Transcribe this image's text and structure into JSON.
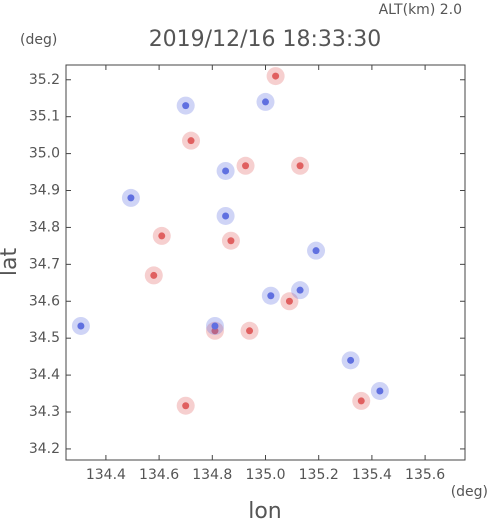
{
  "chart_data": {
    "type": "scatter",
    "title": "2019/12/16 18:33:30",
    "annotation": "ALT(km) 2.0",
    "y_unit": "(deg)",
    "x_unit": "(deg)",
    "x_label": "lon",
    "y_label": "lat",
    "xlim": [
      134.25,
      135.75
    ],
    "ylim": [
      34.17,
      35.24
    ],
    "xticks": [
      134.4,
      134.6,
      134.8,
      {
        "value": 135.0,
        "label": "135.0"
      },
      135.2,
      135.4,
      135.6
    ],
    "yticks": [
      34.2,
      34.3,
      34.4,
      34.5,
      34.6,
      34.7,
      34.8,
      34.9,
      {
        "value": 35.0,
        "label": "35.0"
      },
      35.1,
      35.2
    ],
    "series": [
      {
        "color": "#e06060",
        "x": [
          135.038,
          134.925,
          135.13,
          134.87,
          134.61,
          134.58,
          134.94,
          135.09,
          134.7,
          135.36,
          134.72,
          134.81
        ],
        "y": [
          35.21,
          34.967,
          34.967,
          34.764,
          34.777,
          34.67,
          34.52,
          34.6,
          34.317,
          34.33,
          35.035,
          34.52
        ]
      },
      {
        "color": "#6070e0",
        "x": [
          135.0,
          134.494,
          134.306,
          134.85,
          135.19,
          134.81,
          135.43,
          135.32,
          134.7,
          135.13,
          134.85,
          135.02
        ],
        "y": [
          35.14,
          34.88,
          34.533,
          34.831,
          34.737,
          34.533,
          34.357,
          34.44,
          35.13,
          34.63,
          34.953,
          34.615
        ]
      }
    ]
  }
}
